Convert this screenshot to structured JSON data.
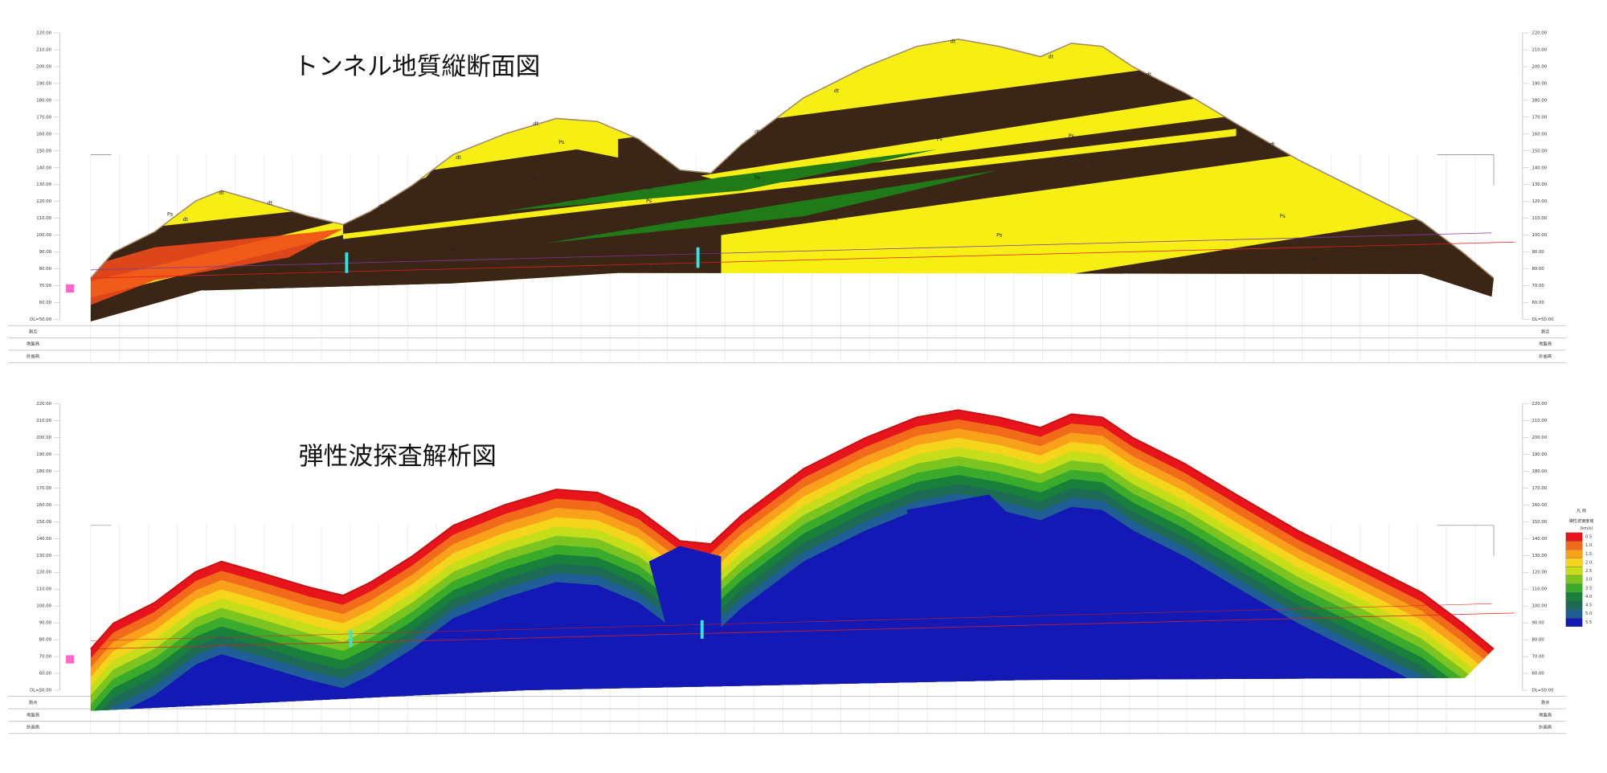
{
  "top_panel": {
    "title": "トンネル地質縦断面図",
    "geology_labels": [
      "dt",
      "dt",
      "dt",
      "dt",
      "dt",
      "dt",
      "dt",
      "dt",
      "dt",
      "dt",
      "dt",
      "dt",
      "Ps",
      "Ps",
      "Ps",
      "Ps",
      "Ps",
      "Ps",
      "Ps",
      "Ps",
      "Ps",
      "Ps",
      "Ps",
      "Ps",
      "Ps",
      "Ps",
      "Ps",
      "Ss",
      "Ss",
      "Ss"
    ]
  },
  "bottom_panel": {
    "title": "弾性波探査解析図",
    "legend": {
      "title": "凡 例",
      "subtitle": "弾性波速度域",
      "unit": "(km/s)",
      "items": [
        {
          "label": "0.5",
          "color": "#e8141b"
        },
        {
          "label": "1.0",
          "color": "#f26b1a"
        },
        {
          "label": "1.5",
          "color": "#f9a11b"
        },
        {
          "label": "2.0",
          "color": "#f5d51b"
        },
        {
          "label": "2.5",
          "color": "#c6dd1a"
        },
        {
          "label": "3.0",
          "color": "#7cc520"
        },
        {
          "label": "3.5",
          "color": "#3aab2a"
        },
        {
          "label": "4.0",
          "color": "#18803a"
        },
        {
          "label": "4.5",
          "color": "#1d6a55"
        },
        {
          "label": "5.0",
          "color": "#1f5f96"
        },
        {
          "label": "5.5",
          "color": "#1418b5"
        }
      ]
    }
  },
  "elevation_labels": [
    "220.00",
    "210.00",
    "200.00",
    "190.00",
    "180.00",
    "170.00",
    "160.00",
    "150.00",
    "140.00",
    "130.00",
    "120.00",
    "110.00",
    "100.00",
    "90.00",
    "80.00",
    "70.00",
    "60.00",
    "DL=50.00"
  ],
  "table_rows": [
    "測点",
    "地盤高",
    "計画高"
  ]
}
